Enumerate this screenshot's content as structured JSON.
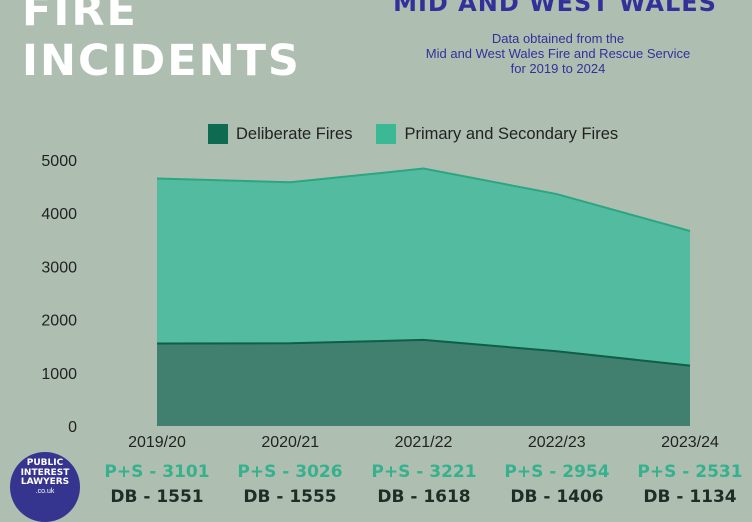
{
  "header": {
    "title_left": [
      "FIRE",
      "INCIDENTS"
    ],
    "title_right": "MID AND WEST WALES",
    "source_lines": [
      "Data obtained from the",
      "Mid and West Wales Fire and Rescue Service",
      "for 2019 to 2024"
    ]
  },
  "logo": {
    "lines": [
      "PUBLIC",
      "INTEREST",
      "LAWYERS"
    ],
    "sub": ".co.uk"
  },
  "colors": {
    "background": "#aebfb2",
    "deliberate": "#417f6e",
    "deliberate_line": "#0e5e48",
    "primary_secondary": "#52bba0",
    "primary_secondary_line": "#2ba681",
    "legend_deliberate": "#0f6a52",
    "legend_primary": "#3bb894"
  },
  "chart_data": {
    "type": "area",
    "stacked": true,
    "categories": [
      "2019/20",
      "2020/21",
      "2021/22",
      "2022/23",
      "2023/24"
    ],
    "series": [
      {
        "name": "Deliberate Fires",
        "values": [
          1551,
          1555,
          1618,
          1406,
          1134
        ]
      },
      {
        "name": "Primary and Secondary Fires",
        "values": [
          3101,
          3026,
          3221,
          2954,
          2531
        ]
      }
    ],
    "ylim": [
      0,
      5000
    ],
    "yticks": [
      "0",
      "1000",
      "2000",
      "3000",
      "4000",
      "5000"
    ],
    "legend_position": "top"
  },
  "stats": [
    {
      "ps": "P+S - 3101",
      "db": "DB - 1551"
    },
    {
      "ps": "P+S - 3026",
      "db": "DB - 1555"
    },
    {
      "ps": "P+S - 3221",
      "db": "DB - 1618"
    },
    {
      "ps": "P+S - 2954",
      "db": "DB - 1406"
    },
    {
      "ps": "P+S - 2531",
      "db": "DB - 1134"
    }
  ]
}
